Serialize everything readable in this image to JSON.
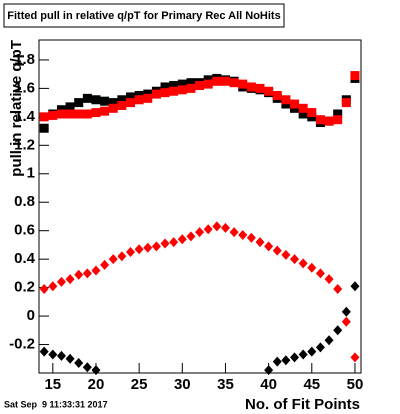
{
  "chart_data": {
    "type": "scatter",
    "title": "Fitted pull in relative q/pT for Primary Rec All NoHits",
    "y_label": "pull in relative q/pT",
    "x_label": "No. of Fit Points",
    "timestamp": "Sat Sep  9 11:33:31 2017",
    "x": [
      14,
      15,
      16,
      17,
      18,
      19,
      20,
      21,
      22,
      23,
      24,
      25,
      26,
      27,
      28,
      29,
      30,
      31,
      32,
      33,
      34,
      35,
      36,
      37,
      38,
      39,
      40,
      41,
      42,
      43,
      44,
      45,
      46,
      47,
      48,
      49,
      50
    ],
    "series": [
      {
        "color": "#000000",
        "marker": "square",
        "values": [
          1.32,
          1.42,
          1.45,
          1.47,
          1.5,
          1.53,
          1.52,
          1.51,
          1.5,
          1.52,
          1.54,
          1.55,
          1.56,
          1.58,
          1.61,
          1.62,
          1.63,
          1.64,
          1.64,
          1.66,
          1.67,
          1.66,
          1.65,
          1.61,
          1.6,
          1.59,
          1.57,
          1.53,
          1.49,
          1.46,
          1.42,
          1.4,
          1.36,
          1.37,
          1.42,
          1.52,
          1.67
        ]
      },
      {
        "color": "#ff0000",
        "marker": "square",
        "values": [
          1.4,
          1.41,
          1.42,
          1.42,
          1.42,
          1.42,
          1.43,
          1.44,
          1.46,
          1.48,
          1.5,
          1.52,
          1.53,
          1.56,
          1.57,
          1.58,
          1.59,
          1.6,
          1.62,
          1.63,
          1.65,
          1.65,
          1.64,
          1.63,
          1.61,
          1.6,
          1.58,
          1.55,
          1.52,
          1.49,
          1.46,
          1.43,
          1.38,
          1.37,
          1.38,
          1.5,
          1.69
        ]
      },
      {
        "color": "#ff0000",
        "marker": "diamond",
        "values": [
          0.19,
          0.21,
          0.24,
          0.26,
          0.29,
          0.3,
          0.32,
          0.36,
          0.4,
          0.42,
          0.45,
          0.47,
          0.48,
          0.49,
          0.51,
          0.52,
          0.54,
          0.56,
          0.59,
          0.61,
          0.63,
          0.62,
          0.59,
          0.57,
          0.55,
          0.52,
          0.49,
          0.46,
          0.43,
          0.4,
          0.37,
          0.34,
          0.3,
          0.26,
          0.19,
          -0.04,
          -0.29
        ]
      },
      {
        "color": "#000000",
        "marker": "diamond",
        "values": [
          -0.25,
          -0.27,
          -0.28,
          -0.3,
          -0.33,
          -0.36,
          -0.38,
          null,
          null,
          null,
          null,
          null,
          null,
          null,
          null,
          null,
          null,
          null,
          null,
          null,
          null,
          null,
          null,
          null,
          null,
          null,
          -0.38,
          -0.32,
          -0.31,
          -0.29,
          -0.27,
          -0.25,
          -0.22,
          -0.17,
          -0.1,
          0.03,
          0.21
        ]
      }
    ],
    "xlim": [
      13.4,
      50.7
    ],
    "ylim": [
      -0.4,
      1.94
    ],
    "xticks": [
      15,
      20,
      25,
      30,
      35,
      40,
      45,
      50
    ],
    "yticks": [
      -0.2,
      0,
      0.2,
      0.4,
      0.6,
      0.8,
      1,
      1.2,
      1.4,
      1.6,
      1.8
    ]
  }
}
